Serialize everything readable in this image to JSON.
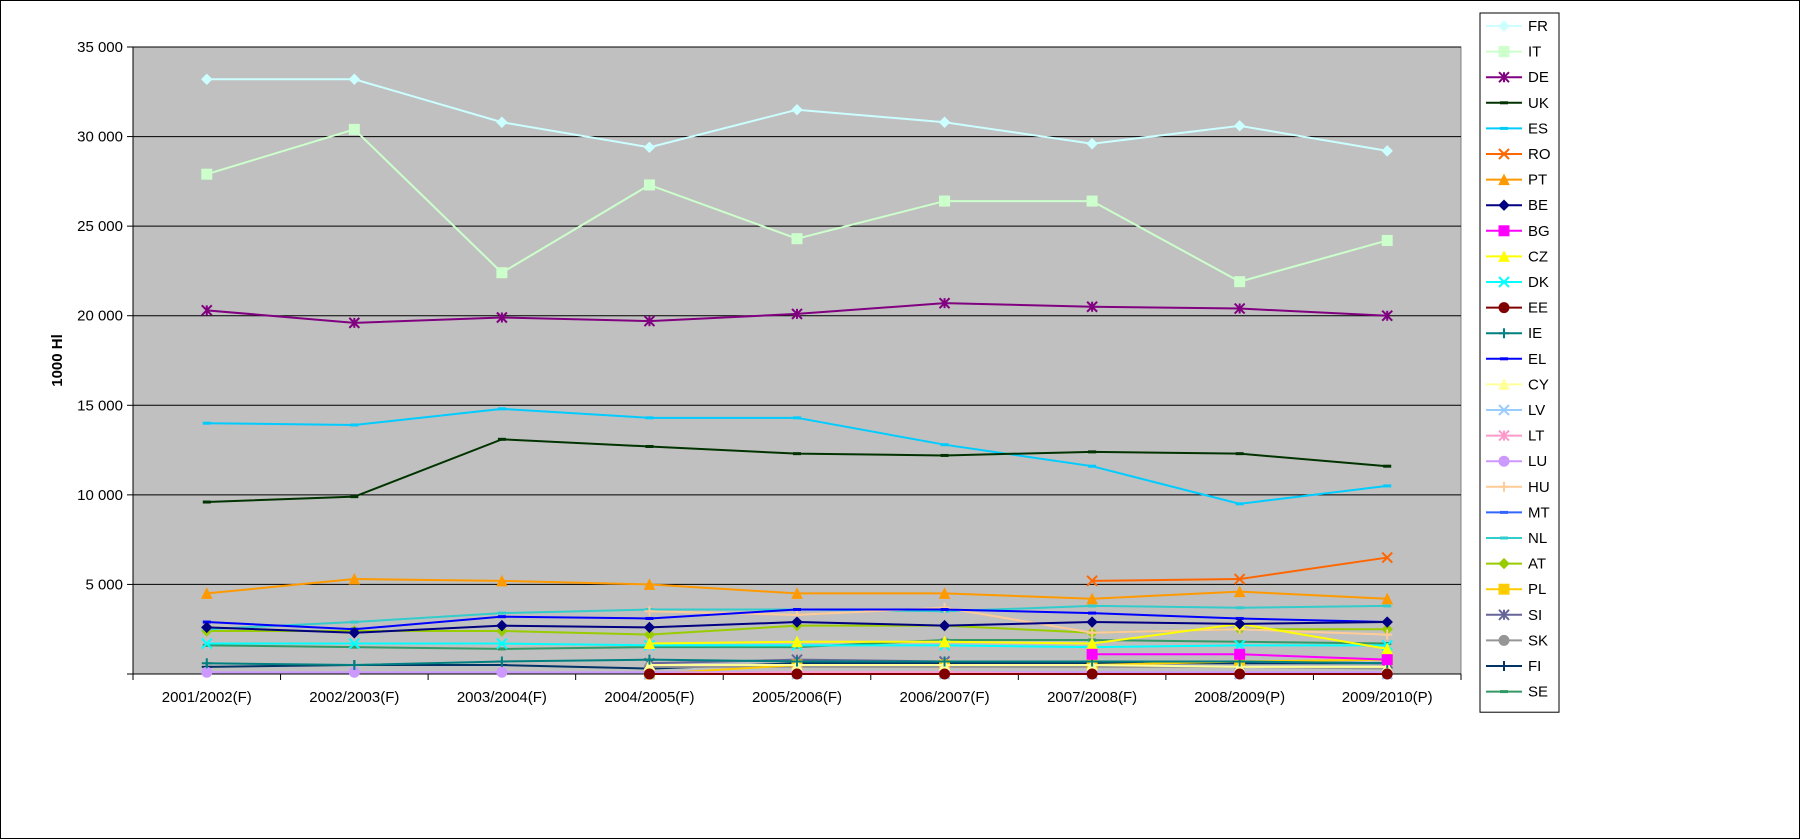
{
  "chart_data": {
    "type": "line",
    "title": "",
    "xlabel": "",
    "ylabel": "1000 Hl",
    "ylim": [
      0,
      35000
    ],
    "yticks": [
      0,
      5000,
      10000,
      15000,
      20000,
      25000,
      30000,
      35000
    ],
    "ytick_labels": [
      "",
      "5 000",
      "10 000",
      "15 000",
      "20 000",
      "25 000",
      "30 000",
      "35 000"
    ],
    "grid": true,
    "legend_position": "right",
    "plot_background": "#C0C0C0",
    "categories": [
      "2001/2002(F)",
      "2002/2003(F)",
      "2003/2004(F)",
      "2004/2005(F)",
      "2005/2006(F)",
      "2006/2007(F)",
      "2007/2008(F)",
      "2008/2009(P)",
      "2009/2010(P)"
    ],
    "series": [
      {
        "name": "FR",
        "color": "#CCFFFF",
        "marker": "diamond",
        "values": [
          33200,
          33200,
          30800,
          29400,
          31500,
          30800,
          29600,
          30600,
          29200
        ]
      },
      {
        "name": "IT",
        "color": "#CCFFCC",
        "marker": "square",
        "values": [
          27900,
          30400,
          22400,
          27300,
          24300,
          26400,
          26400,
          21900,
          24200
        ]
      },
      {
        "name": "DE",
        "color": "#800080",
        "marker": "star",
        "values": [
          20300,
          19600,
          19900,
          19700,
          20100,
          20700,
          20500,
          20400,
          20000
        ]
      },
      {
        "name": "UK",
        "color": "#003300",
        "marker": "dash",
        "values": [
          9600,
          9900,
          13100,
          12700,
          12300,
          12200,
          12400,
          12300,
          11600
        ]
      },
      {
        "name": "ES",
        "color": "#00CCFF",
        "marker": "dash",
        "values": [
          14000,
          13900,
          14800,
          14300,
          14300,
          12800,
          11600,
          9500,
          10500
        ]
      },
      {
        "name": "RO",
        "color": "#FF6600",
        "marker": "x",
        "values": [
          null,
          null,
          null,
          null,
          null,
          null,
          5200,
          5300,
          6500
        ]
      },
      {
        "name": "PT",
        "color": "#FF9900",
        "marker": "triangle",
        "values": [
          4500,
          5300,
          5200,
          5000,
          4500,
          4500,
          4200,
          4600,
          4200
        ]
      },
      {
        "name": "BE",
        "color": "#000080",
        "marker": "diamond",
        "values": [
          2600,
          2300,
          2700,
          2600,
          2900,
          2700,
          2900,
          2800,
          2900
        ]
      },
      {
        "name": "BG",
        "color": "#FF00FF",
        "marker": "square",
        "values": [
          null,
          null,
          null,
          null,
          null,
          null,
          1100,
          1100,
          800
        ]
      },
      {
        "name": "CZ",
        "color": "#FFFF00",
        "marker": "triangle",
        "values": [
          null,
          null,
          null,
          1700,
          1800,
          1800,
          1700,
          2800,
          1400
        ]
      },
      {
        "name": "DK",
        "color": "#00FFFF",
        "marker": "x",
        "values": [
          1700,
          1700,
          1700,
          1600,
          1600,
          1600,
          1500,
          1600,
          1600
        ]
      },
      {
        "name": "EE",
        "color": "#800000",
        "marker": "circle",
        "values": [
          null,
          null,
          null,
          0,
          0,
          0,
          0,
          0,
          0
        ]
      },
      {
        "name": "IE",
        "color": "#008080",
        "marker": "plus",
        "values": [
          600,
          500,
          700,
          800,
          700,
          700,
          700,
          700,
          600
        ]
      },
      {
        "name": "EL",
        "color": "#0000FF",
        "marker": "dash",
        "values": [
          2900,
          2500,
          3200,
          3100,
          3600,
          3600,
          3400,
          3100,
          2900
        ]
      },
      {
        "name": "CY",
        "color": "#FFFF99",
        "marker": "triangle",
        "values": [
          null,
          null,
          null,
          500,
          500,
          500,
          500,
          400,
          400
        ]
      },
      {
        "name": "LV",
        "color": "#99CCFF",
        "marker": "x",
        "values": [
          null,
          null,
          null,
          0,
          0,
          0,
          0,
          0,
          0
        ]
      },
      {
        "name": "LT",
        "color": "#FF99CC",
        "marker": "star",
        "values": [
          null,
          null,
          null,
          0,
          100,
          100,
          0,
          0,
          0
        ]
      },
      {
        "name": "LU",
        "color": "#CC99FF",
        "marker": "circle",
        "values": [
          100,
          100,
          100,
          100,
          100,
          100,
          100,
          100,
          100
        ]
      },
      {
        "name": "HU",
        "color": "#FFCC99",
        "marker": "plus",
        "values": [
          null,
          null,
          null,
          3500,
          3300,
          3700,
          2300,
          2500,
          2200
        ]
      },
      {
        "name": "MT",
        "color": "#3366FF",
        "marker": "dash",
        "values": [
          null,
          null,
          null,
          0,
          0,
          0,
          0,
          0,
          0
        ]
      },
      {
        "name": "NL",
        "color": "#33CCCC",
        "marker": "dash",
        "values": [
          2500,
          2900,
          3400,
          3600,
          3600,
          3500,
          3800,
          3700,
          3800
        ]
      },
      {
        "name": "AT",
        "color": "#99CC00",
        "marker": "diamond",
        "values": [
          2400,
          2400,
          2400,
          2200,
          2700,
          2700,
          2300,
          2500,
          2500
        ]
      },
      {
        "name": "PL",
        "color": "#FFCC00",
        "marker": "square",
        "values": [
          null,
          null,
          null,
          0,
          500,
          500,
          500,
          700,
          800
        ]
      },
      {
        "name": "SI",
        "color": "#666699",
        "marker": "star",
        "values": [
          null,
          null,
          null,
          600,
          800,
          700,
          700,
          700,
          600
        ]
      },
      {
        "name": "SK",
        "color": "#969696",
        "marker": "circle",
        "values": [
          null,
          null,
          null,
          400,
          400,
          400,
          400,
          400,
          300
        ]
      },
      {
        "name": "FI",
        "color": "#003366",
        "marker": "plus",
        "values": [
          400,
          500,
          500,
          300,
          600,
          600,
          600,
          600,
          600
        ]
      },
      {
        "name": "SE",
        "color": "#339966",
        "marker": "dash",
        "values": [
          1600,
          1500,
          1400,
          1500,
          1500,
          1900,
          1900,
          1800,
          1700
        ]
      }
    ]
  }
}
